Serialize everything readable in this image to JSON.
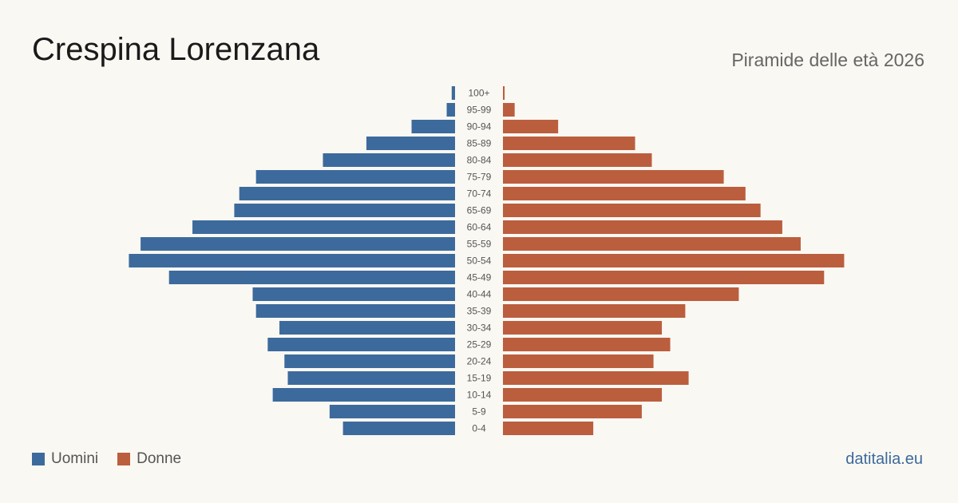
{
  "header": {
    "title": "Crespina Lorenzana",
    "subtitle": "Piramide delle età 2026"
  },
  "legend": {
    "men_label": "Uomini",
    "women_label": "Donne"
  },
  "brand": {
    "label": "datitalia.eu"
  },
  "colors": {
    "men": "#3d6a9c",
    "women": "#bb5e3e",
    "brand": "#3d6a9c",
    "tick_text": "#555555"
  },
  "chart_data": {
    "type": "bar",
    "orientation": "horizontal-pyramid",
    "title": "Crespina Lorenzana",
    "subtitle": "Piramide delle età 2026",
    "categories": [
      "100+",
      "95-99",
      "90-94",
      "85-89",
      "80-84",
      "75-79",
      "70-74",
      "65-69",
      "60-64",
      "55-59",
      "50-54",
      "45-49",
      "40-44",
      "35-39",
      "30-34",
      "25-29",
      "20-24",
      "15-19",
      "10-14",
      "5-9",
      "0-4"
    ],
    "series": [
      {
        "name": "Uomini",
        "side": "left",
        "values": [
          2,
          5,
          26,
          53,
          79,
          119,
          129,
          132,
          157,
          188,
          195,
          171,
          121,
          119,
          105,
          112,
          102,
          100,
          109,
          75,
          67
        ]
      },
      {
        "name": "Donne",
        "side": "right",
        "values": [
          1,
          7,
          33,
          79,
          89,
          132,
          145,
          154,
          167,
          178,
          204,
          192,
          141,
          109,
          95,
          100,
          90,
          111,
          95,
          83,
          54
        ]
      }
    ],
    "xlim": [
      0,
      210
    ],
    "grid": false,
    "legend_position": "bottom-left"
  }
}
